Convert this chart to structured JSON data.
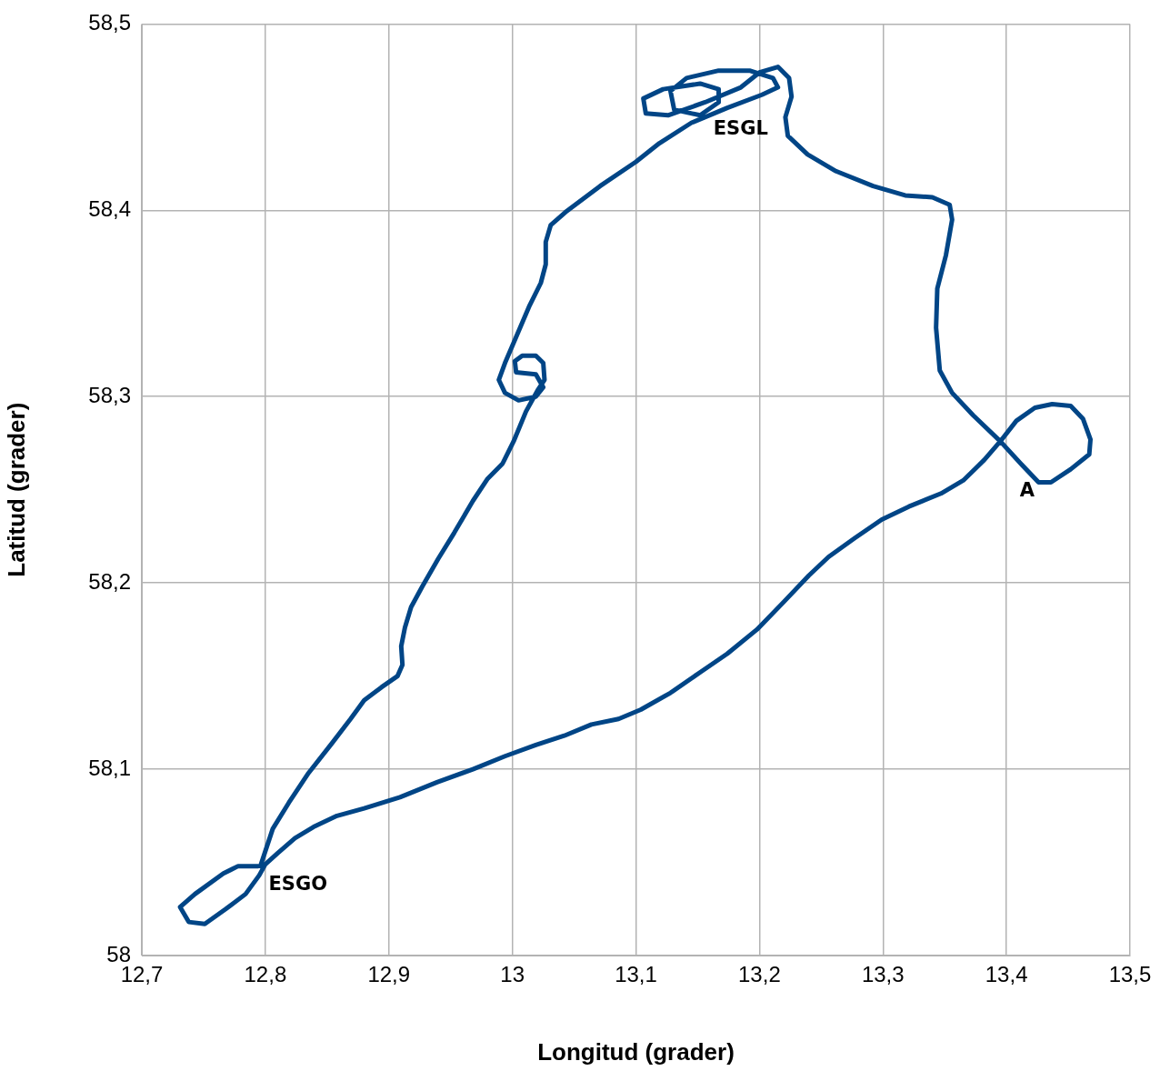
{
  "chart_data": {
    "type": "line",
    "xlabel": "Longitud (grader)",
    "ylabel": "Latitud (grader)",
    "xlim": [
      12.7,
      13.5
    ],
    "ylim": [
      58,
      58.5
    ],
    "xticks": [
      {
        "value": 12.7,
        "label": "12,7"
      },
      {
        "value": 12.8,
        "label": "12,8"
      },
      {
        "value": 12.9,
        "label": "12,9"
      },
      13,
      {
        "value": 13.1,
        "label": "13,1"
      },
      {
        "value": 13.2,
        "label": "13,2"
      },
      {
        "value": 13.3,
        "label": "13,3"
      },
      {
        "value": 13.4,
        "label": "13,4"
      },
      {
        "value": 13.5,
        "label": "13,5"
      }
    ],
    "yticks": [
      58,
      {
        "value": 58.1,
        "label": "58,1"
      },
      {
        "value": 58.2,
        "label": "58,2"
      },
      {
        "value": 58.3,
        "label": "58,3"
      },
      {
        "value": 58.4,
        "label": "58,4"
      },
      {
        "value": 58.5,
        "label": "58,5"
      }
    ],
    "grid": true,
    "series": [
      {
        "color": "#004586",
        "x": [
          12.796,
          12.806,
          12.819,
          12.835,
          12.854,
          12.869,
          12.88,
          12.894,
          12.907,
          12.911,
          12.91,
          12.913,
          12.918,
          12.927,
          12.94,
          12.953,
          12.968,
          12.98,
          12.992,
          13.001,
          13.011,
          13.021,
          13.026,
          13.025,
          13.019,
          13.008,
          13.002,
          13.003,
          13.019,
          13.025,
          13.019,
          13.005,
          12.994,
          12.989,
          12.994,
          13.003,
          13.014,
          13.023,
          13.027,
          13.027,
          13.031,
          13.043,
          13.071,
          13.1,
          13.119,
          13.145,
          13.174,
          13.202,
          13.215,
          13.211,
          13.192,
          13.167,
          13.141,
          13.128,
          13.131,
          13.152,
          13.167,
          13.167,
          13.152,
          13.122,
          13.106,
          13.108,
          13.126,
          13.156,
          13.185,
          13.2,
          13.215,
          13.224,
          13.226,
          13.221,
          13.223,
          13.239,
          13.262,
          13.292,
          13.318,
          13.34,
          13.354,
          13.356,
          13.351,
          13.344,
          13.343,
          13.346,
          13.356,
          13.373,
          13.395,
          13.413,
          13.426,
          13.436,
          13.452,
          13.467,
          13.468,
          13.462,
          13.452,
          13.437,
          13.423,
          13.408,
          13.395,
          13.382,
          13.365,
          13.347,
          13.321,
          13.299,
          13.277,
          13.256,
          13.24,
          13.22,
          13.198,
          13.174,
          13.152,
          13.128,
          13.104,
          13.086,
          13.064,
          13.042,
          13.019,
          12.994,
          12.968,
          12.939,
          12.909,
          12.88,
          12.858,
          12.839,
          12.824,
          12.81,
          12.8,
          12.795,
          12.784,
          12.768,
          12.751,
          12.738,
          12.731,
          12.743,
          12.766,
          12.778,
          12.794
        ],
        "values": [
          58.048,
          58.068,
          58.082,
          58.098,
          58.114,
          58.127,
          58.137,
          58.144,
          58.15,
          58.156,
          58.166,
          58.176,
          58.187,
          58.198,
          58.213,
          58.227,
          58.244,
          58.256,
          58.264,
          58.276,
          58.292,
          58.304,
          58.309,
          58.318,
          58.322,
          58.322,
          58.319,
          58.313,
          58.312,
          58.305,
          58.3,
          58.298,
          58.302,
          58.309,
          58.318,
          58.332,
          58.349,
          58.361,
          58.371,
          58.383,
          58.392,
          58.399,
          58.413,
          58.426,
          58.436,
          58.447,
          58.455,
          58.462,
          58.466,
          58.471,
          58.475,
          58.475,
          58.471,
          58.464,
          58.454,
          58.451,
          58.458,
          58.465,
          58.468,
          58.465,
          58.46,
          58.452,
          58.451,
          58.458,
          58.466,
          58.474,
          58.477,
          58.471,
          58.461,
          58.45,
          58.44,
          58.43,
          58.421,
          58.413,
          58.408,
          58.407,
          58.403,
          58.395,
          58.376,
          58.358,
          58.337,
          58.314,
          58.302,
          58.29,
          58.276,
          58.263,
          58.254,
          58.254,
          58.261,
          58.269,
          58.277,
          58.288,
          58.295,
          58.296,
          58.294,
          58.287,
          58.276,
          58.266,
          58.255,
          58.248,
          58.241,
          58.234,
          58.224,
          58.214,
          58.204,
          58.19,
          58.175,
          58.162,
          58.152,
          58.141,
          58.132,
          58.127,
          58.124,
          58.118,
          58.113,
          58.107,
          58.1,
          58.093,
          58.085,
          58.079,
          58.075,
          58.069,
          58.063,
          58.055,
          58.049,
          58.043,
          58.033,
          58.025,
          58.017,
          58.018,
          58.026,
          58.033,
          58.044,
          58.048,
          58.048
        ]
      }
    ],
    "annotations": [
      "ESGL",
      "ESGO",
      "A"
    ]
  }
}
